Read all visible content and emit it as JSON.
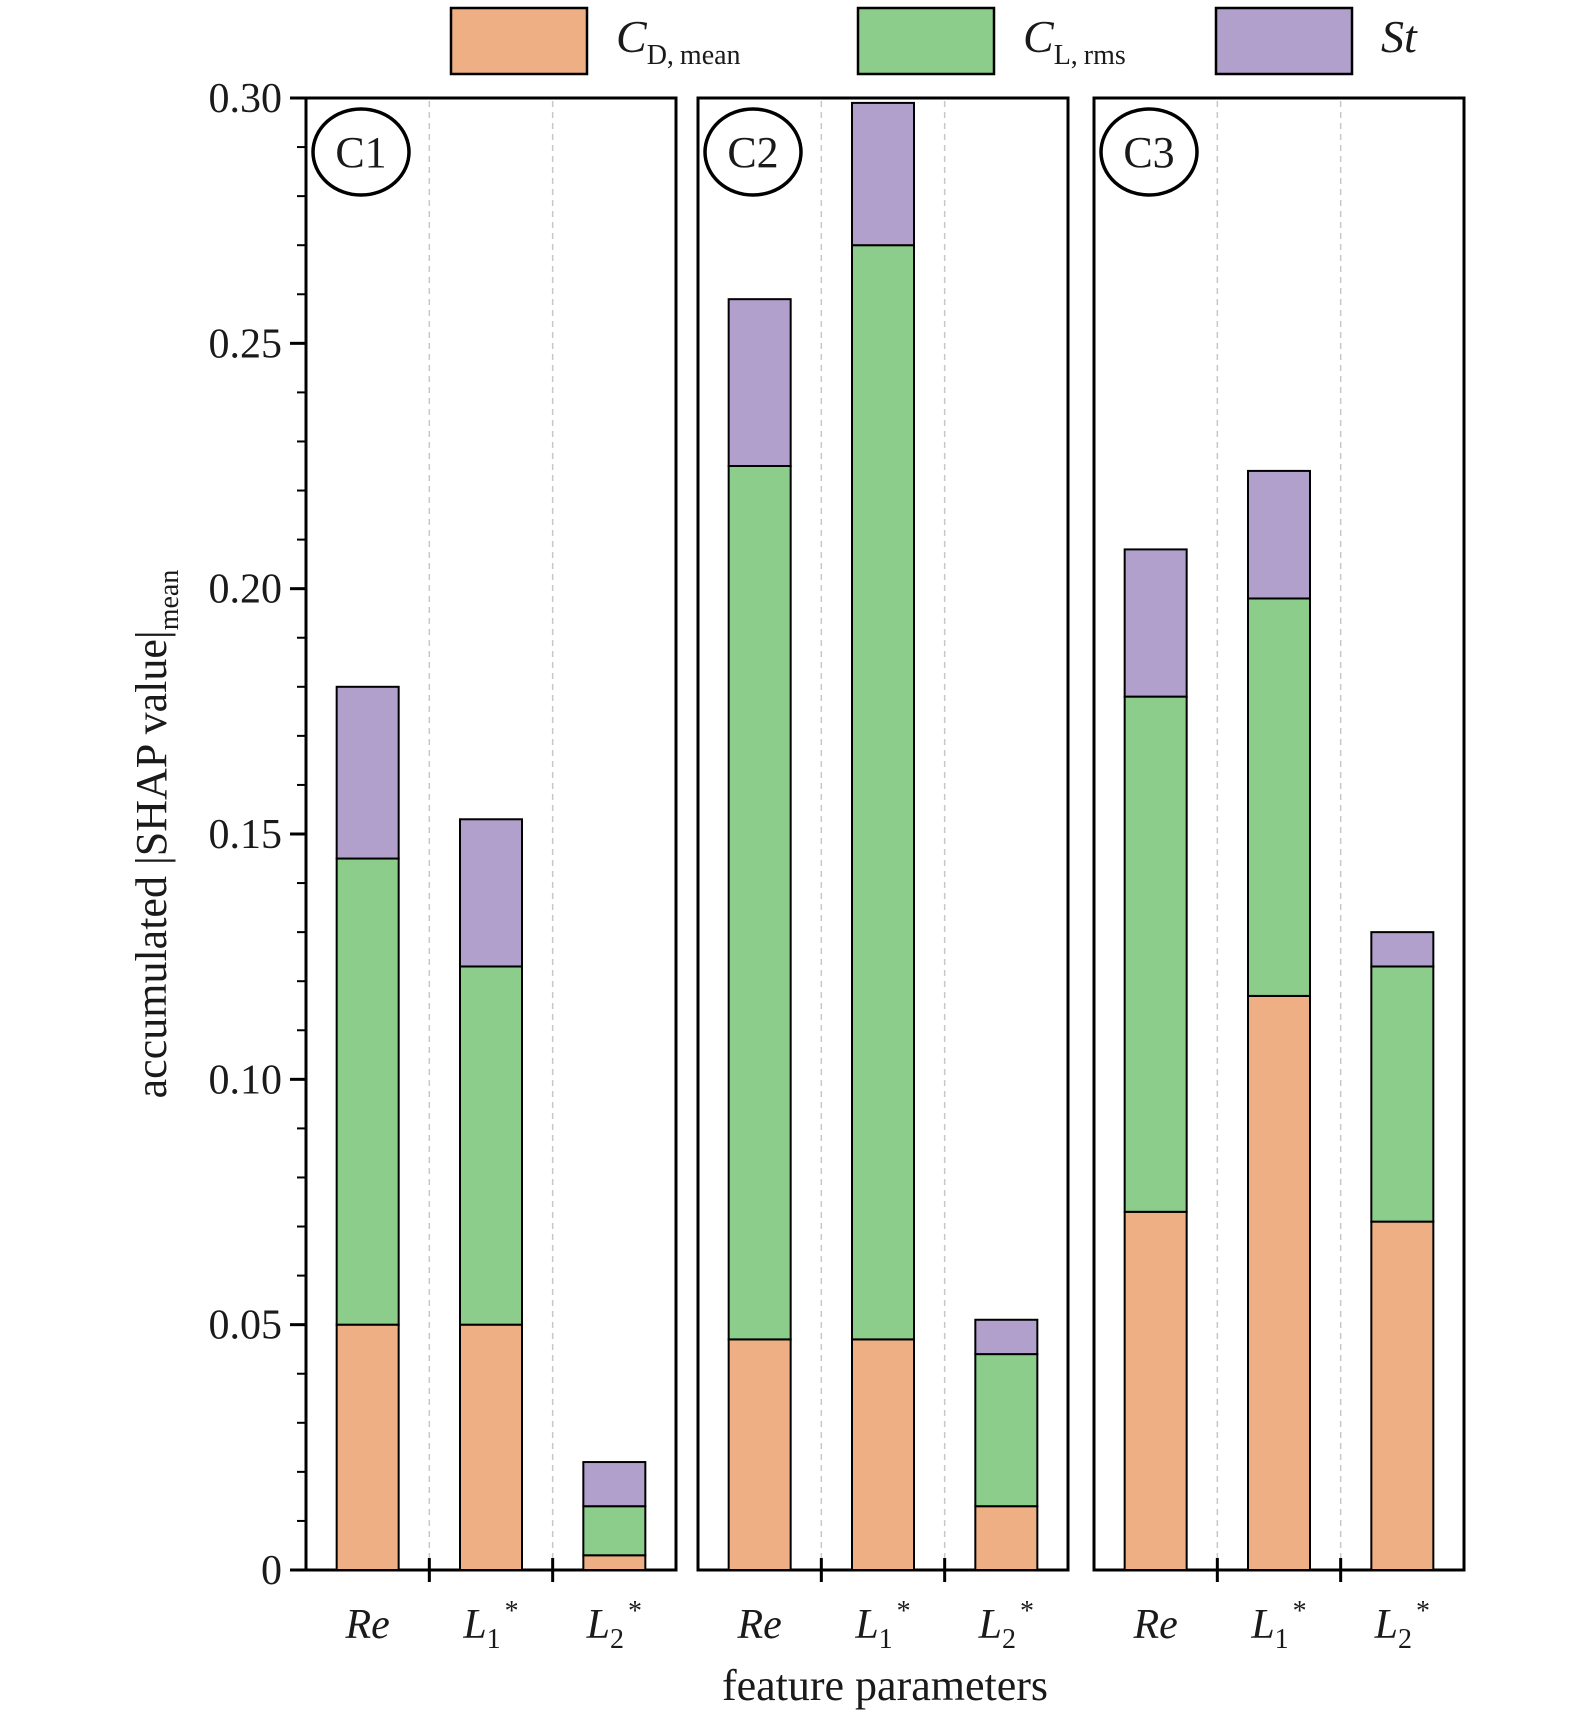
{
  "chart_data": {
    "type": "bar",
    "stacked": true,
    "ylabel": {
      "main": "accumulated |SHAP value|",
      "sub": "mean"
    },
    "xlabel": "feature parameters",
    "ylim": [
      0,
      0.3
    ],
    "y_ticks": [
      {
        "value": 0,
        "label": "0"
      },
      {
        "value": 0.05,
        "label": "0.05"
      },
      {
        "value": 0.1,
        "label": "0.10"
      },
      {
        "value": 0.15,
        "label": "0.15"
      },
      {
        "value": 0.2,
        "label": "0.20"
      },
      {
        "value": 0.25,
        "label": "0.25"
      },
      {
        "value": 0.3,
        "label": "0.30"
      }
    ],
    "legend_position": "top",
    "legend": [
      {
        "key": "cd",
        "main": "C",
        "sub": "D,",
        "suffix": "mean",
        "color": "#eeaf84"
      },
      {
        "key": "cl",
        "main": "C",
        "sub": "L,",
        "suffix": "rms",
        "color": "#8ccd8c"
      },
      {
        "key": "st",
        "main": "St",
        "sub": "",
        "suffix": "",
        "color": "#b1a0cb"
      }
    ],
    "categories": [
      {
        "main": "Re",
        "sub": "",
        "sup": ""
      },
      {
        "main": "L",
        "sub": "1",
        "sup": "*"
      },
      {
        "main": "L",
        "sub": "2",
        "sup": "*"
      }
    ],
    "panels": [
      {
        "label": "C1",
        "series": [
          {
            "name": "C_D,mean",
            "values": [
              0.05,
              0.05,
              0.003
            ]
          },
          {
            "name": "C_L,rms",
            "values": [
              0.095,
              0.073,
              0.01
            ]
          },
          {
            "name": "St",
            "values": [
              0.035,
              0.03,
              0.009
            ]
          }
        ]
      },
      {
        "label": "C2",
        "series": [
          {
            "name": "C_D,mean",
            "values": [
              0.047,
              0.047,
              0.013
            ]
          },
          {
            "name": "C_L,rms",
            "values": [
              0.178,
              0.223,
              0.031
            ]
          },
          {
            "name": "St",
            "values": [
              0.034,
              0.029,
              0.007
            ]
          }
        ]
      },
      {
        "label": "C3",
        "series": [
          {
            "name": "C_D,mean",
            "values": [
              0.073,
              0.117,
              0.071
            ]
          },
          {
            "name": "C_L,rms",
            "values": [
              0.105,
              0.081,
              0.052
            ]
          },
          {
            "name": "St",
            "values": [
              0.03,
              0.026,
              0.007
            ]
          }
        ]
      }
    ]
  }
}
